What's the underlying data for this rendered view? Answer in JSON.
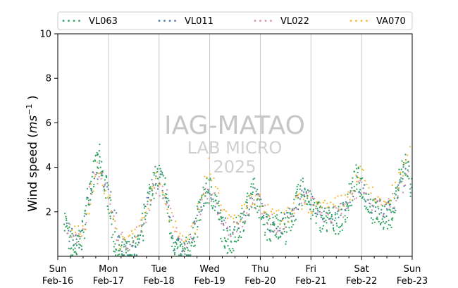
{
  "chart_data": {
    "type": "scatter",
    "ylabel_parts": [
      "Wind speed (",
      "ms",
      "−1",
      " )"
    ],
    "ylim": [
      0,
      10
    ],
    "yticks": [
      2,
      4,
      6,
      8,
      10
    ],
    "xlim": [
      "2025-02-16",
      "2025-02-23"
    ],
    "xticks": [
      {
        "date": "2025-02-16",
        "day": "Sun",
        "date_label": "Feb-16"
      },
      {
        "date": "2025-02-17",
        "day": "Mon",
        "date_label": "Feb-17"
      },
      {
        "date": "2025-02-18",
        "day": "Tue",
        "date_label": "Feb-18"
      },
      {
        "date": "2025-02-19",
        "day": "Wed",
        "date_label": "Feb-19"
      },
      {
        "date": "2025-02-20",
        "day": "Thu",
        "date_label": "Feb-20"
      },
      {
        "date": "2025-02-21",
        "day": "Fri",
        "date_label": "Feb-21"
      },
      {
        "date": "2025-02-22",
        "day": "Sat",
        "date_label": "Feb-22"
      },
      {
        "date": "2025-02-23",
        "day": "Sun",
        "date_label": "Feb-23"
      }
    ],
    "grid": "vertical",
    "legend_position": "top",
    "watermark": [
      "IAG-MATAO",
      "LAB MICRO",
      "2025"
    ],
    "series": [
      {
        "name": "VL063",
        "color": "#2ca25f",
        "points": [
          [
            "2025-02-16 03:00",
            1.8
          ],
          [
            "2025-02-16 06:00",
            0.5
          ],
          [
            "2025-02-16 09:00",
            0.3
          ],
          [
            "2025-02-16 12:00",
            1.0
          ],
          [
            "2025-02-16 15:00",
            3.1
          ],
          [
            "2025-02-16 18:00",
            4.0
          ],
          [
            "2025-02-16 19:30",
            4.4
          ],
          [
            "2025-02-16 21:00",
            3.6
          ],
          [
            "2025-02-17 00:00",
            2.8
          ],
          [
            "2025-02-17 03:00",
            0.5
          ],
          [
            "2025-02-17 06:00",
            0.2
          ],
          [
            "2025-02-17 09:00",
            0.1
          ],
          [
            "2025-02-17 12:00",
            0.3
          ],
          [
            "2025-02-17 15:00",
            0.4
          ],
          [
            "2025-02-17 18:00",
            2.4
          ],
          [
            "2025-02-17 21:00",
            3.2
          ],
          [
            "2025-02-18 00:00",
            3.6
          ],
          [
            "2025-02-18 03:00",
            3.0
          ],
          [
            "2025-02-18 06:00",
            1.0
          ],
          [
            "2025-02-18 09:00",
            0.2
          ],
          [
            "2025-02-18 12:00",
            0.1
          ],
          [
            "2025-02-18 15:00",
            0.5
          ],
          [
            "2025-02-18 18:00",
            1.5
          ],
          [
            "2025-02-18 21:00",
            2.7
          ],
          [
            "2025-02-19 00:00",
            3.0
          ],
          [
            "2025-02-19 03:00",
            2.4
          ],
          [
            "2025-02-19 06:00",
            1.2
          ],
          [
            "2025-02-19 09:00",
            0.6
          ],
          [
            "2025-02-19 12:00",
            1.0
          ],
          [
            "2025-02-19 15:00",
            1.5
          ],
          [
            "2025-02-19 18:00",
            2.3
          ],
          [
            "2025-02-19 21:00",
            3.0
          ],
          [
            "2025-02-20 00:00",
            2.1
          ],
          [
            "2025-02-20 03:00",
            1.3
          ],
          [
            "2025-02-20 06:00",
            1.2
          ],
          [
            "2025-02-20 09:00",
            1.5
          ],
          [
            "2025-02-20 12:00",
            1.2
          ],
          [
            "2025-02-20 15:00",
            1.8
          ],
          [
            "2025-02-20 18:00",
            2.6
          ],
          [
            "2025-02-20 21:00",
            3.1
          ],
          [
            "2025-02-21 00:00",
            2.2
          ],
          [
            "2025-02-21 03:00",
            2.0
          ],
          [
            "2025-02-21 06:00",
            1.6
          ],
          [
            "2025-02-21 09:00",
            1.7
          ],
          [
            "2025-02-21 12:00",
            1.6
          ],
          [
            "2025-02-21 15:00",
            1.8
          ],
          [
            "2025-02-21 18:00",
            2.5
          ],
          [
            "2025-02-21 21:00",
            3.5
          ],
          [
            "2025-02-22 00:00",
            3.2
          ],
          [
            "2025-02-22 03:00",
            2.5
          ],
          [
            "2025-02-22 06:00",
            2.0
          ],
          [
            "2025-02-22 09:00",
            1.9
          ],
          [
            "2025-02-22 12:00",
            1.8
          ],
          [
            "2025-02-22 15:00",
            2.0
          ],
          [
            "2025-02-22 18:00",
            3.5
          ],
          [
            "2025-02-22 21:00",
            4.2
          ],
          [
            "2025-02-23 00:00",
            3.0
          ],
          [
            "2025-02-23 00:00",
            1.4
          ]
        ]
      },
      {
        "name": "VL011",
        "color": "#4e79a7",
        "points": [
          [
            "2025-02-16 04:00",
            1.2
          ],
          [
            "2025-02-16 10:00",
            0.4
          ],
          [
            "2025-02-16 16:00",
            3.3
          ],
          [
            "2025-02-16 20:00",
            3.9
          ],
          [
            "2025-02-17 01:00",
            2.5
          ],
          [
            "2025-02-17 07:00",
            0.3
          ],
          [
            "2025-02-17 13:00",
            0.2
          ],
          [
            "2025-02-17 19:00",
            2.9
          ],
          [
            "2025-02-18 01:00",
            3.5
          ],
          [
            "2025-02-18 07:00",
            0.6
          ],
          [
            "2025-02-18 13:00",
            0.3
          ],
          [
            "2025-02-18 19:00",
            2.0
          ],
          [
            "2025-02-18 23:00",
            3.2
          ],
          [
            "2025-02-19 05:00",
            1.8
          ],
          [
            "2025-02-19 11:00",
            0.8
          ],
          [
            "2025-02-19 17:00",
            2.0
          ],
          [
            "2025-02-19 22:00",
            2.8
          ],
          [
            "2025-02-20 04:00",
            1.4
          ],
          [
            "2025-02-20 10:00",
            1.3
          ],
          [
            "2025-02-20 16:00",
            2.2
          ],
          [
            "2025-02-20 22:00",
            2.9
          ],
          [
            "2025-02-21 04:00",
            1.9
          ],
          [
            "2025-02-21 10:00",
            1.5
          ],
          [
            "2025-02-21 16:00",
            2.0
          ],
          [
            "2025-02-21 22:00",
            3.4
          ],
          [
            "2025-02-22 04:00",
            2.4
          ],
          [
            "2025-02-22 10:00",
            1.9
          ],
          [
            "2025-02-22 16:00",
            2.4
          ],
          [
            "2025-02-22 22:00",
            3.9
          ]
        ]
      },
      {
        "name": "VL022",
        "color": "#d98fa8",
        "points": [
          [
            "2025-02-16 05:00",
            1.4
          ],
          [
            "2025-02-16 11:00",
            0.6
          ],
          [
            "2025-02-16 17:00",
            3.6
          ],
          [
            "2025-02-16 22:00",
            3.4
          ],
          [
            "2025-02-17 04:00",
            0.8
          ],
          [
            "2025-02-17 10:00",
            0.6
          ],
          [
            "2025-02-17 16:00",
            1.2
          ],
          [
            "2025-02-17 22:00",
            3.3
          ],
          [
            "2025-02-18 04:00",
            2.6
          ],
          [
            "2025-02-18 10:00",
            0.5
          ],
          [
            "2025-02-18 16:00",
            0.9
          ],
          [
            "2025-02-18 22:00",
            3.1
          ],
          [
            "2025-02-19 04:00",
            2.2
          ],
          [
            "2025-02-19 10:00",
            0.9
          ],
          [
            "2025-02-19 16:00",
            1.8
          ],
          [
            "2025-02-19 23:00",
            2.6
          ],
          [
            "2025-02-20 05:00",
            1.5
          ],
          [
            "2025-02-20 11:00",
            1.4
          ],
          [
            "2025-02-20 17:00",
            2.4
          ],
          [
            "2025-02-20 23:00",
            2.6
          ],
          [
            "2025-02-21 05:00",
            1.8
          ],
          [
            "2025-02-21 11:00",
            1.9
          ],
          [
            "2025-02-21 17:00",
            2.2
          ],
          [
            "2025-02-21 23:00",
            3.3
          ],
          [
            "2025-02-22 05:00",
            2.3
          ],
          [
            "2025-02-22 11:00",
            2.1
          ],
          [
            "2025-02-22 17:00",
            2.8
          ],
          [
            "2025-02-22 23:00",
            3.6
          ]
        ]
      },
      {
        "name": "VA070",
        "color": "#f5b82e",
        "points": [
          [
            "2025-02-16 07:00",
            0.9
          ],
          [
            "2025-02-16 13:00",
            1.3
          ],
          [
            "2025-02-16 18:30",
            4.1
          ],
          [
            "2025-02-16 23:00",
            3.0
          ],
          [
            "2025-02-17 05:00",
            0.7
          ],
          [
            "2025-02-17 11:00",
            1.0
          ],
          [
            "2025-02-17 17:00",
            1.6
          ],
          [
            "2025-02-17 23:00",
            3.9
          ],
          [
            "2025-02-18 05:00",
            1.9
          ],
          [
            "2025-02-18 11:00",
            1.0
          ],
          [
            "2025-02-18 17:00",
            1.2
          ],
          [
            "2025-02-18 23:30",
            4.3
          ],
          [
            "2025-02-19 06:00",
            1.9
          ],
          [
            "2025-02-19 12:00",
            1.6
          ],
          [
            "2025-02-19 18:00",
            2.4
          ],
          [
            "2025-02-20 00:00",
            2.4
          ],
          [
            "2025-02-20 06:00",
            1.8
          ],
          [
            "2025-02-20 12:00",
            1.7
          ],
          [
            "2025-02-20 18:00",
            2.5
          ],
          [
            "2025-02-21 00:00",
            2.3
          ],
          [
            "2025-02-21 06:00",
            2.1
          ],
          [
            "2025-02-21 12:00",
            2.3
          ],
          [
            "2025-02-21 18:00",
            2.7
          ],
          [
            "2025-02-21 23:30",
            3.8
          ],
          [
            "2025-02-22 06:00",
            2.6
          ],
          [
            "2025-02-22 12:00",
            2.4
          ],
          [
            "2025-02-22 18:00",
            3.4
          ],
          [
            "2025-02-22 23:30",
            4.8
          ]
        ]
      }
    ]
  }
}
